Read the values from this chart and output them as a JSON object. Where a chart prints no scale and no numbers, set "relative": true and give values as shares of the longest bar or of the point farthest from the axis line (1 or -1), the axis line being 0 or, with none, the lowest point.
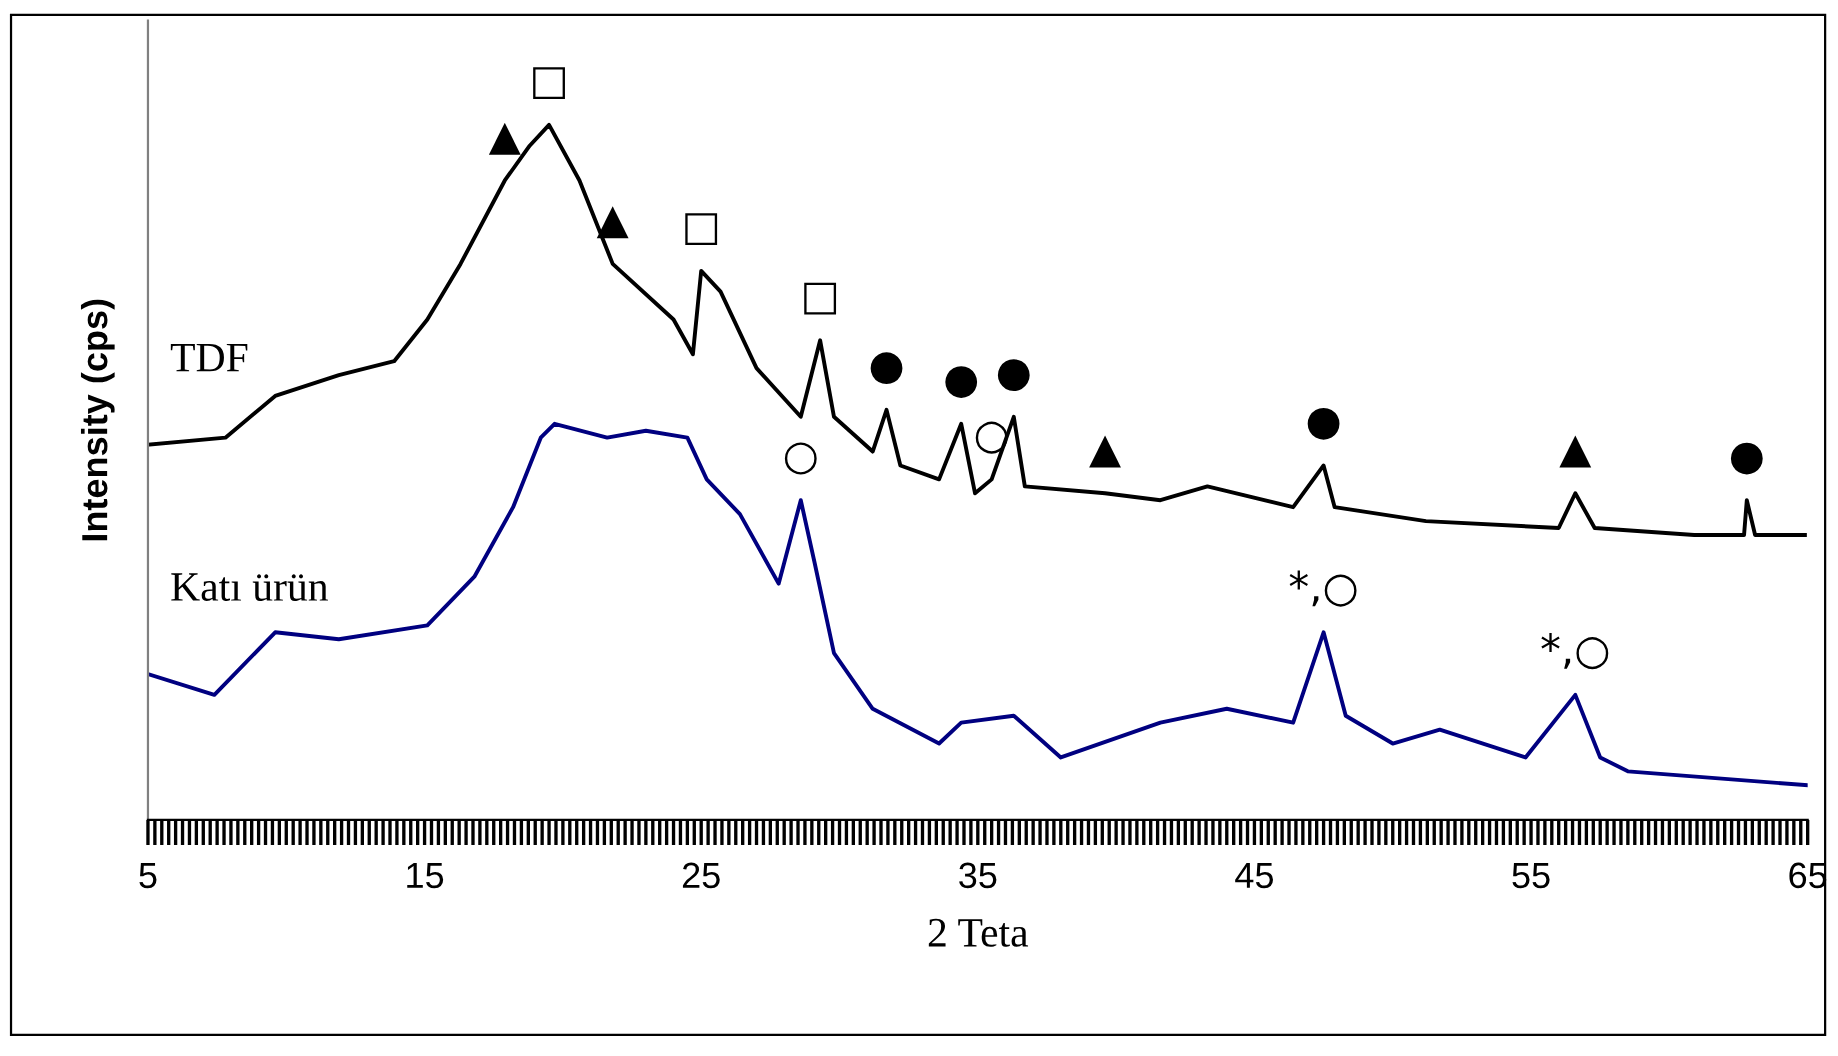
{
  "chart_data": {
    "type": "line",
    "relative": true,
    "xlabel": "2 Teta",
    "ylabel": "Intensity (cps)",
    "xlim": [
      5,
      65
    ],
    "xticks": [
      5,
      15,
      25,
      35,
      45,
      55,
      65
    ],
    "grid": false,
    "legend": false,
    "marker": "none",
    "line_style": "solid",
    "series": [
      {
        "name": "TDF",
        "color": "#000000",
        "x": [
          5,
          7.8,
          9.6,
          11.9,
          13.9,
          15.1,
          16.3,
          17.9,
          18.8,
          19.5,
          20.6,
          21.8,
          24,
          24.7,
          25,
          25.7,
          27,
          28.6,
          29.3,
          29.8,
          31.2,
          31.7,
          32.2,
          33.6,
          34.4,
          34.9,
          35.5,
          36.3,
          36.7,
          39.6,
          41.6,
          43.3,
          46.4,
          47.5,
          47.9,
          51.2,
          56,
          56.6,
          57.3,
          60.9,
          62.7,
          62.8,
          63.1,
          64.9
        ],
        "values": [
          0.54,
          0.55,
          0.61,
          0.64,
          0.66,
          0.72,
          0.8,
          0.92,
          0.97,
          1.0,
          0.92,
          0.8,
          0.72,
          0.67,
          0.79,
          0.76,
          0.65,
          0.58,
          0.69,
          0.58,
          0.53,
          0.59,
          0.51,
          0.49,
          0.57,
          0.47,
          0.49,
          0.58,
          0.48,
          0.47,
          0.46,
          0.48,
          0.45,
          0.51,
          0.45,
          0.43,
          0.42,
          0.47,
          0.42,
          0.41,
          0.41,
          0.46,
          0.41,
          0.41
        ]
      },
      {
        "name": "Katı ürün",
        "color": "#000080",
        "x": [
          5,
          7.4,
          9.6,
          11.9,
          15.1,
          16.8,
          18.2,
          19.2,
          19.7,
          21.6,
          23,
          24.5,
          25.2,
          26.4,
          27.8,
          28.6,
          29.1,
          29.8,
          31.2,
          33.6,
          34.4,
          36.3,
          38,
          41.6,
          44,
          46.4,
          47.5,
          48.3,
          50,
          51.7,
          54.8,
          56.6,
          57.5,
          58.5,
          65
        ],
        "values": [
          0.21,
          0.18,
          0.27,
          0.26,
          0.28,
          0.35,
          0.45,
          0.55,
          0.57,
          0.55,
          0.56,
          0.55,
          0.49,
          0.44,
          0.34,
          0.46,
          0.37,
          0.24,
          0.16,
          0.11,
          0.14,
          0.15,
          0.09,
          0.14,
          0.16,
          0.14,
          0.27,
          0.15,
          0.11,
          0.13,
          0.09,
          0.18,
          0.09,
          0.07,
          0.05
        ]
      }
    ],
    "annotations": [
      {
        "text": "▲",
        "x": 17.9,
        "y": 0.92
      },
      {
        "text": "□",
        "x": 19.5,
        "y": 1.0
      },
      {
        "text": "▲",
        "x": 21.8,
        "y": 0.8
      },
      {
        "text": "□",
        "x": 25,
        "y": 0.79
      },
      {
        "text": "□",
        "x": 29.3,
        "y": 0.69
      },
      {
        "text": "●",
        "x": 31.7,
        "y": 0.59
      },
      {
        "text": "●",
        "x": 34.4,
        "y": 0.57
      },
      {
        "text": "●",
        "x": 36.3,
        "y": 0.58
      },
      {
        "text": "○",
        "x": 28.6,
        "y": 0.46
      },
      {
        "text": "○",
        "x": 35.5,
        "y": 0.49
      },
      {
        "text": "▲",
        "x": 39.6,
        "y": 0.47
      },
      {
        "text": "●",
        "x": 47.5,
        "y": 0.51
      },
      {
        "text": "▲",
        "x": 56.6,
        "y": 0.47
      },
      {
        "text": "●",
        "x": 62.8,
        "y": 0.46
      },
      {
        "text": "*,○",
        "x": 47.5,
        "y": 0.27
      },
      {
        "text": "*,○",
        "x": 56.6,
        "y": 0.18
      }
    ]
  }
}
